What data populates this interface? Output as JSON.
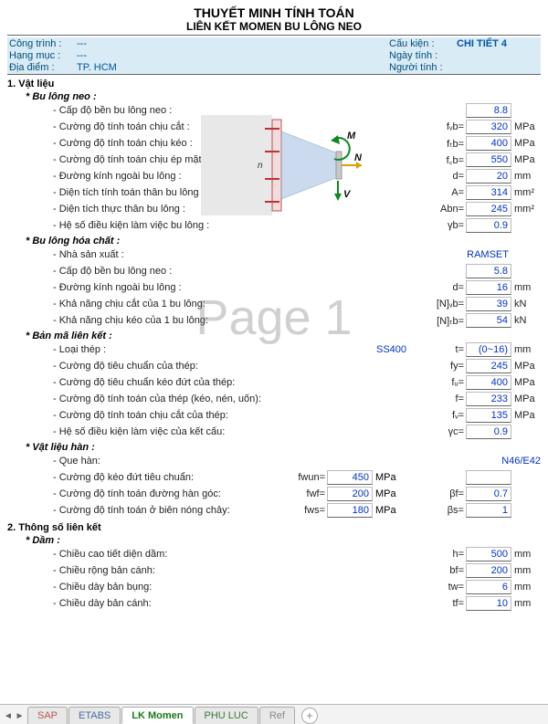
{
  "header": {
    "title1": "THUYẾT MINH TÍNH TOÁN",
    "title2": "LIÊN KẾT MOMEN BU LÔNG NEO"
  },
  "info": {
    "l1a": "Công trình :",
    "l1b": "---",
    "l2a": "Hạng mục :",
    "l2b": "---",
    "l3a": "Địa điểm :",
    "l3b": "TP. HCM",
    "r1a": "Cấu kiện :",
    "r1b": "CHI TIẾT 4",
    "r2a": "Ngày tính :",
    "r2b": "",
    "r3a": "Người tính :",
    "r3b": ""
  },
  "sections": {
    "s1": "1. Vật liệu",
    "s1a": "* Bu lông neo :",
    "s1b": "* Bu lông hóa chất :",
    "s1c": "* Bản mã liên kết :",
    "s1d": "* Vật liệu hàn :",
    "s2": "2. Thông số liên kết",
    "s2a": "* Dầm :"
  },
  "bolt_anchor": [
    {
      "label": "- Cấp độ bền bu lông neo :",
      "sym": "",
      "val": "8.8",
      "unit": ""
    },
    {
      "label": "- Cường độ tính toán chịu cắt :",
      "sym": "fᵥb=",
      "val": "320",
      "unit": "MPa"
    },
    {
      "label": "- Cường độ tính toán chịu kéo :",
      "sym": "fₜb=",
      "val": "400",
      "unit": "MPa"
    },
    {
      "label": "- Cường độ tính toán chịu ép mặt :",
      "sym": "f꜀b=",
      "val": "550",
      "unit": "MPa"
    },
    {
      "label": "- Đường kính ngoài bu lông :",
      "sym": "d=",
      "val": "20",
      "unit": "mm"
    },
    {
      "label": "- Diện tích tính toán thân bu lông :",
      "sym": "A=",
      "val": "314",
      "unit": "mm²"
    },
    {
      "label": "- Diện tích thực thân bu lông :",
      "sym": "Abn=",
      "val": "245",
      "unit": "mm²"
    },
    {
      "label": "- Hệ số điều kiện làm việc bu lông :",
      "sym": "γb=",
      "val": "0.9",
      "unit": ""
    }
  ],
  "bolt_chem": [
    {
      "label": "- Nhà sản xuất :",
      "sym": "",
      "val": "RAMSET",
      "unit": "",
      "plain": true
    },
    {
      "label": "- Cấp độ bền bu lông neo :",
      "sym": "",
      "val": "5.8",
      "unit": ""
    },
    {
      "label": "- Đường kính ngoài bu lông :",
      "sym": "d=",
      "val": "16",
      "unit": "mm"
    },
    {
      "label": "- Khả năng chịu cắt của 1 bu lông:",
      "sym": "[N]ᵥb=",
      "val": "39",
      "unit": "kN"
    },
    {
      "label": "- Khả năng chịu kéo của 1 bu lông:",
      "sym": "[N]ₜb=",
      "val": "54",
      "unit": "kN"
    }
  ],
  "plate": [
    {
      "label": "- Loại thép :",
      "sym2": "SS400",
      "sym": "t=",
      "val": "(0~16)",
      "unit": "mm",
      "plainSym2": true
    },
    {
      "label": "- Cường độ tiêu chuẩn của thép:",
      "sym": "fy=",
      "val": "245",
      "unit": "MPa"
    },
    {
      "label": "- Cường độ tiêu chuẩn kéo đứt của thép:",
      "sym": "fᵤ=",
      "val": "400",
      "unit": "MPa"
    },
    {
      "label": "- Cường độ tính toán của thép (kéo, nén, uốn):",
      "sym": "f=",
      "val": "233",
      "unit": "MPa"
    },
    {
      "label": "- Cường độ tính toán chịu cắt của thép:",
      "sym": "fᵥ=",
      "val": "135",
      "unit": "MPa"
    },
    {
      "label": "- Hệ số điều kiện làm việc của kết cấu:",
      "sym": "γc=",
      "val": "0.9",
      "unit": ""
    }
  ],
  "weld": {
    "line0": {
      "label": "- Que hàn:",
      "val": "N46/E42"
    },
    "rows": [
      {
        "label": "- Cường độ kéo đứt tiêu chuẩn:",
        "msym": "fwun=",
        "mval": "450",
        "munit": "MPa",
        "sym": "",
        "val": "",
        "unit": ""
      },
      {
        "label": "- Cường độ tính toán đường hàn góc:",
        "msym": "fwf=",
        "mval": "200",
        "munit": "MPa",
        "sym": "βf=",
        "val": "0.7",
        "unit": ""
      },
      {
        "label": "- Cường độ tính toán ở biên nóng chảy:",
        "msym": "fws=",
        "mval": "180",
        "munit": "MPa",
        "sym": "βs=",
        "val": "1",
        "unit": ""
      }
    ]
  },
  "beam": [
    {
      "label": "- Chiều cao tiết diện dầm:",
      "sym": "h=",
      "val": "500",
      "unit": "mm"
    },
    {
      "label": "- Chiều rộng bản cánh:",
      "sym": "bf=",
      "val": "200",
      "unit": "mm"
    },
    {
      "label": "- Chiều dày bản bụng:",
      "sym": "tw=",
      "val": "6",
      "unit": "mm"
    },
    {
      "label": "- Chiều dày bản cánh:",
      "sym": "tf=",
      "val": "10",
      "unit": "mm"
    }
  ],
  "diagram": {
    "bg": "#e6e6e6",
    "col": "#efefef",
    "plate_fill": "#f5dada",
    "plate_stroke": "#c05050",
    "bolt": "#c03030",
    "beam_fill": "rgba(100,140,200,0.35)",
    "n_label": "n",
    "m_label": "M",
    "m_color": "#0a7a20",
    "n2_label": "N",
    "n_color": "#d8a000",
    "v_label": "V",
    "v_color": "#0a7a20"
  },
  "watermark": "Page 1",
  "tabs": {
    "items": [
      "SAP",
      "ETABS",
      "LK Momen",
      "PHU LUC",
      "Ref"
    ],
    "classes": [
      "c1",
      "c4",
      "active",
      "c2",
      "c3"
    ]
  }
}
